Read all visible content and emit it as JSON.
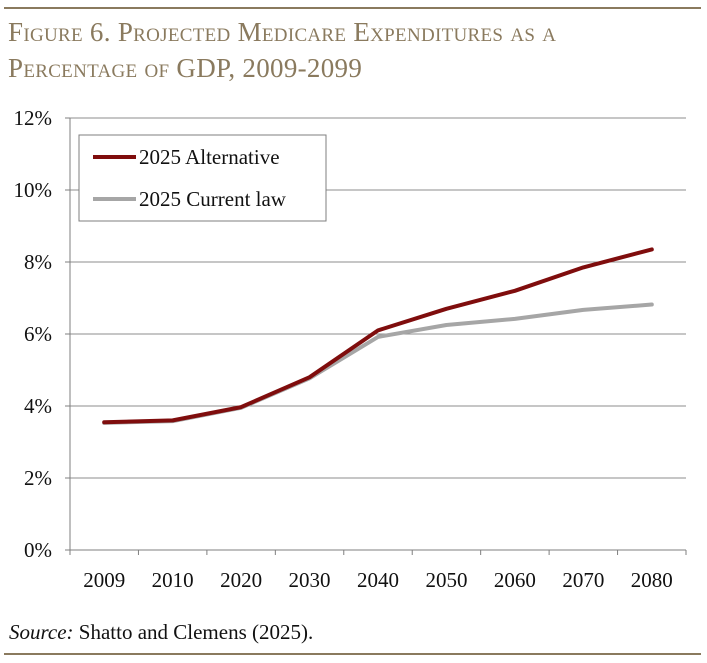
{
  "figure": {
    "title_line1": "Figure 6. Projected Medicare Expenditures as a",
    "title_line2": "Percentage of GDP, 2009-2099",
    "source_label": "Source:",
    "source_text": " Shatto and Clemens (2025)."
  },
  "colors": {
    "title": "#8a7a5e",
    "alternative": "#7f0d0d",
    "current_law": "#a6a6a6",
    "grid": "#8c8c8c",
    "axis": "#7f7f7f"
  },
  "chart_data": {
    "type": "line",
    "title": "Projected Medicare Expenditures as a Percentage of GDP, 2009-2099",
    "xlabel": "",
    "ylabel": "",
    "categories": [
      "2009",
      "2010",
      "2020",
      "2030",
      "2040",
      "2050",
      "2060",
      "2070",
      "2080"
    ],
    "y_ticks": [
      "0%",
      "2%",
      "4%",
      "6%",
      "8%",
      "10%",
      "12%"
    ],
    "ylim": [
      0,
      12
    ],
    "grid": true,
    "legend_position": "top-left",
    "series": [
      {
        "name": "2025 Alternative",
        "color": "#7f0d0d",
        "values": [
          3.55,
          3.6,
          3.97,
          4.8,
          6.1,
          6.7,
          7.2,
          7.85,
          8.35
        ]
      },
      {
        "name": "2025 Current law",
        "color": "#a6a6a6",
        "values": [
          3.53,
          3.58,
          3.95,
          4.77,
          5.92,
          6.25,
          6.42,
          6.67,
          6.82
        ]
      }
    ]
  }
}
